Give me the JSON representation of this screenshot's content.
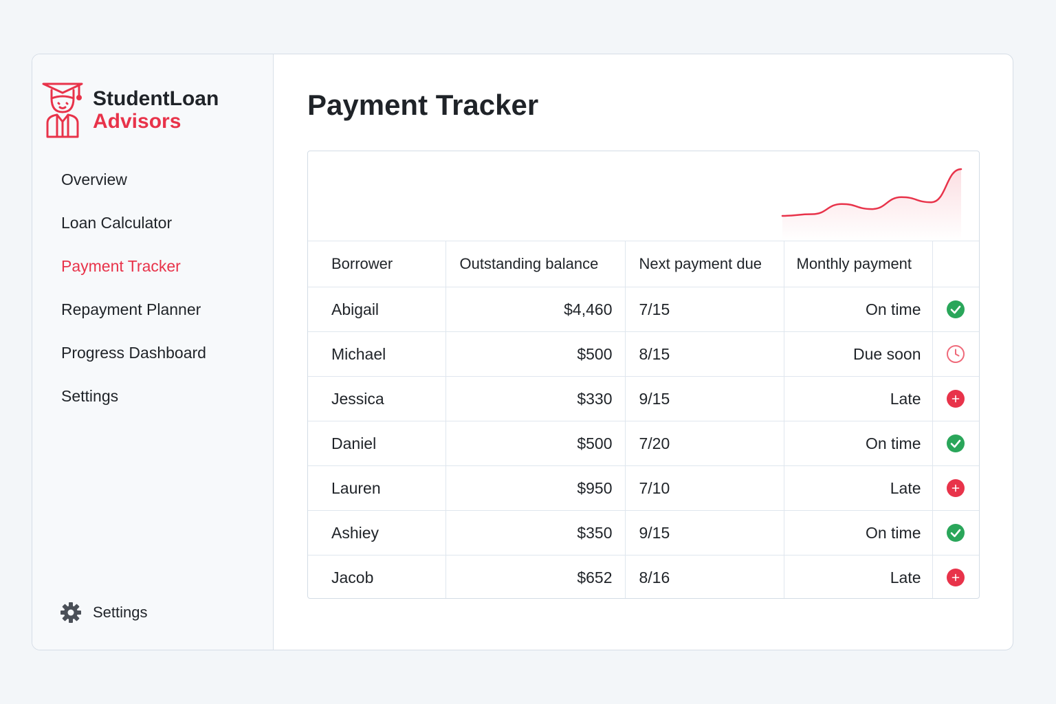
{
  "brand": {
    "line1": "StudentLoan",
    "line2": "Advisors"
  },
  "sidebar": {
    "items": [
      {
        "label": "Overview",
        "active": false
      },
      {
        "label": "Loan Calculator",
        "active": false
      },
      {
        "label": "Payment Tracker",
        "active": true
      },
      {
        "label": "Repayment Planner",
        "active": false
      },
      {
        "label": "Progress Dashboard",
        "active": false
      },
      {
        "label": "Settings",
        "active": false
      }
    ],
    "footer": {
      "label": "Settings",
      "icon": "gear-icon"
    }
  },
  "main": {
    "title": "Payment Tracker",
    "table": {
      "headers": [
        "Borrower",
        "Outstanding balance",
        "Next payment due",
        "Monthly payment",
        ""
      ],
      "rows": [
        {
          "borrower": "Abigail",
          "balance": "$4,460",
          "due": "7/15",
          "status": "On time",
          "state": "on",
          "icon": "check-circle-icon"
        },
        {
          "borrower": "Michael",
          "balance": "$500",
          "due": "8/15",
          "status": "Due soon",
          "state": "soon",
          "icon": "clock-icon"
        },
        {
          "borrower": "Jessica",
          "balance": "$330",
          "due": "9/15",
          "status": "Late",
          "state": "late",
          "icon": "alert-circle-icon"
        },
        {
          "borrower": "Daniel",
          "balance": "$500",
          "due": "7/20",
          "status": "On time",
          "state": "on",
          "icon": "check-circle-icon"
        },
        {
          "borrower": "Lauren",
          "balance": "$950",
          "due": "7/10",
          "status": "Late",
          "state": "late",
          "icon": "alert-circle-icon"
        },
        {
          "borrower": "Ashiey",
          "balance": "$350",
          "due": "9/15",
          "status": "On time",
          "state": "on",
          "icon": "check-circle-icon"
        },
        {
          "borrower": "Jacob",
          "balance": "$652",
          "due": "8/16",
          "status": "Late",
          "state": "late",
          "icon": "alert-circle-icon"
        }
      ]
    },
    "sparkline": {
      "values": [
        0,
        2,
        14,
        8,
        22,
        16,
        55
      ],
      "color": "#e8334a"
    }
  },
  "colors": {
    "accent": "#e8334a",
    "success": "#2aa65a",
    "text": "#1f2328"
  }
}
